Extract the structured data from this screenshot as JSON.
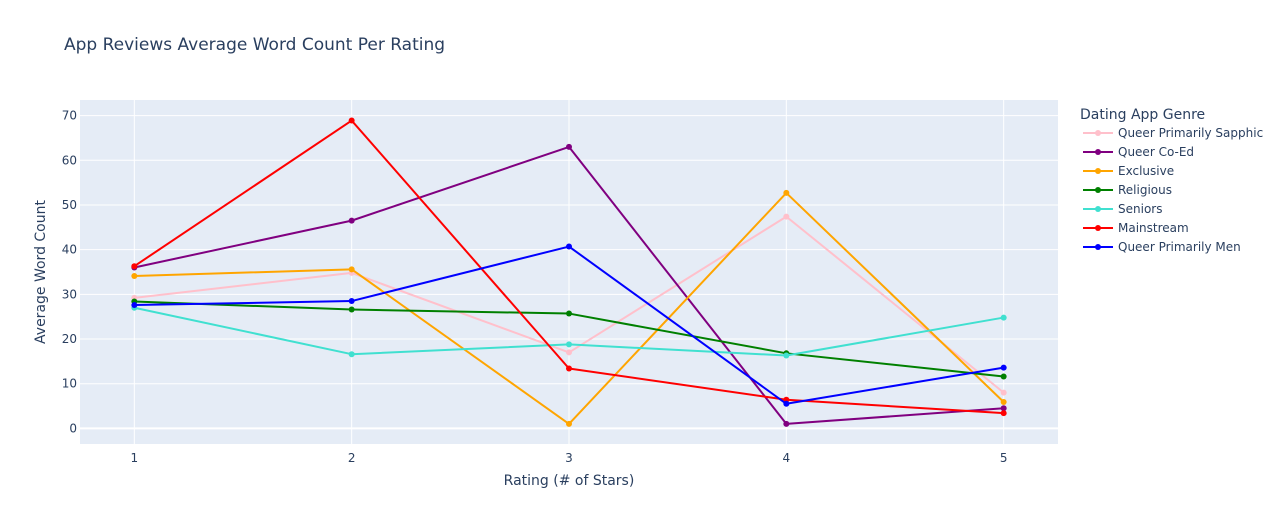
{
  "chart_data": {
    "type": "line",
    "title": "App Reviews Average Word Count Per Rating",
    "xlabel": "Rating (# of Stars)",
    "ylabel": "Average Word Count",
    "x": [
      1,
      2,
      3,
      4,
      5
    ],
    "xlim": [
      0.75,
      5.25
    ],
    "ylim": [
      -3.5,
      73.5
    ],
    "yticks": [
      0,
      10,
      20,
      30,
      40,
      50,
      60,
      70
    ],
    "grid": true,
    "legend_title": "Dating App Genre",
    "legend_position": "right",
    "series": [
      {
        "name": "Queer Primarily Sapphic",
        "color": "#ffc0cb",
        "values": [
          29.2,
          34.8,
          17.0,
          47.4,
          8.0
        ]
      },
      {
        "name": "Queer Co-Ed",
        "color": "#800080",
        "values": [
          36.0,
          46.5,
          63.0,
          1.0,
          4.5
        ]
      },
      {
        "name": "Exclusive",
        "color": "#ffa500",
        "values": [
          34.1,
          35.6,
          1.0,
          52.7,
          5.9
        ]
      },
      {
        "name": "Religious",
        "color": "#008000",
        "values": [
          28.4,
          26.6,
          25.7,
          16.8,
          11.6
        ]
      },
      {
        "name": "Seniors",
        "color": "#40e0d0",
        "values": [
          27.0,
          16.6,
          18.8,
          16.3,
          24.8
        ]
      },
      {
        "name": "Mainstream",
        "color": "#ff0000",
        "values": [
          36.3,
          68.9,
          13.4,
          6.4,
          3.4
        ]
      },
      {
        "name": "Queer Primarily Men",
        "color": "#0000ff",
        "values": [
          27.6,
          28.5,
          40.7,
          5.5,
          13.6
        ]
      }
    ]
  }
}
